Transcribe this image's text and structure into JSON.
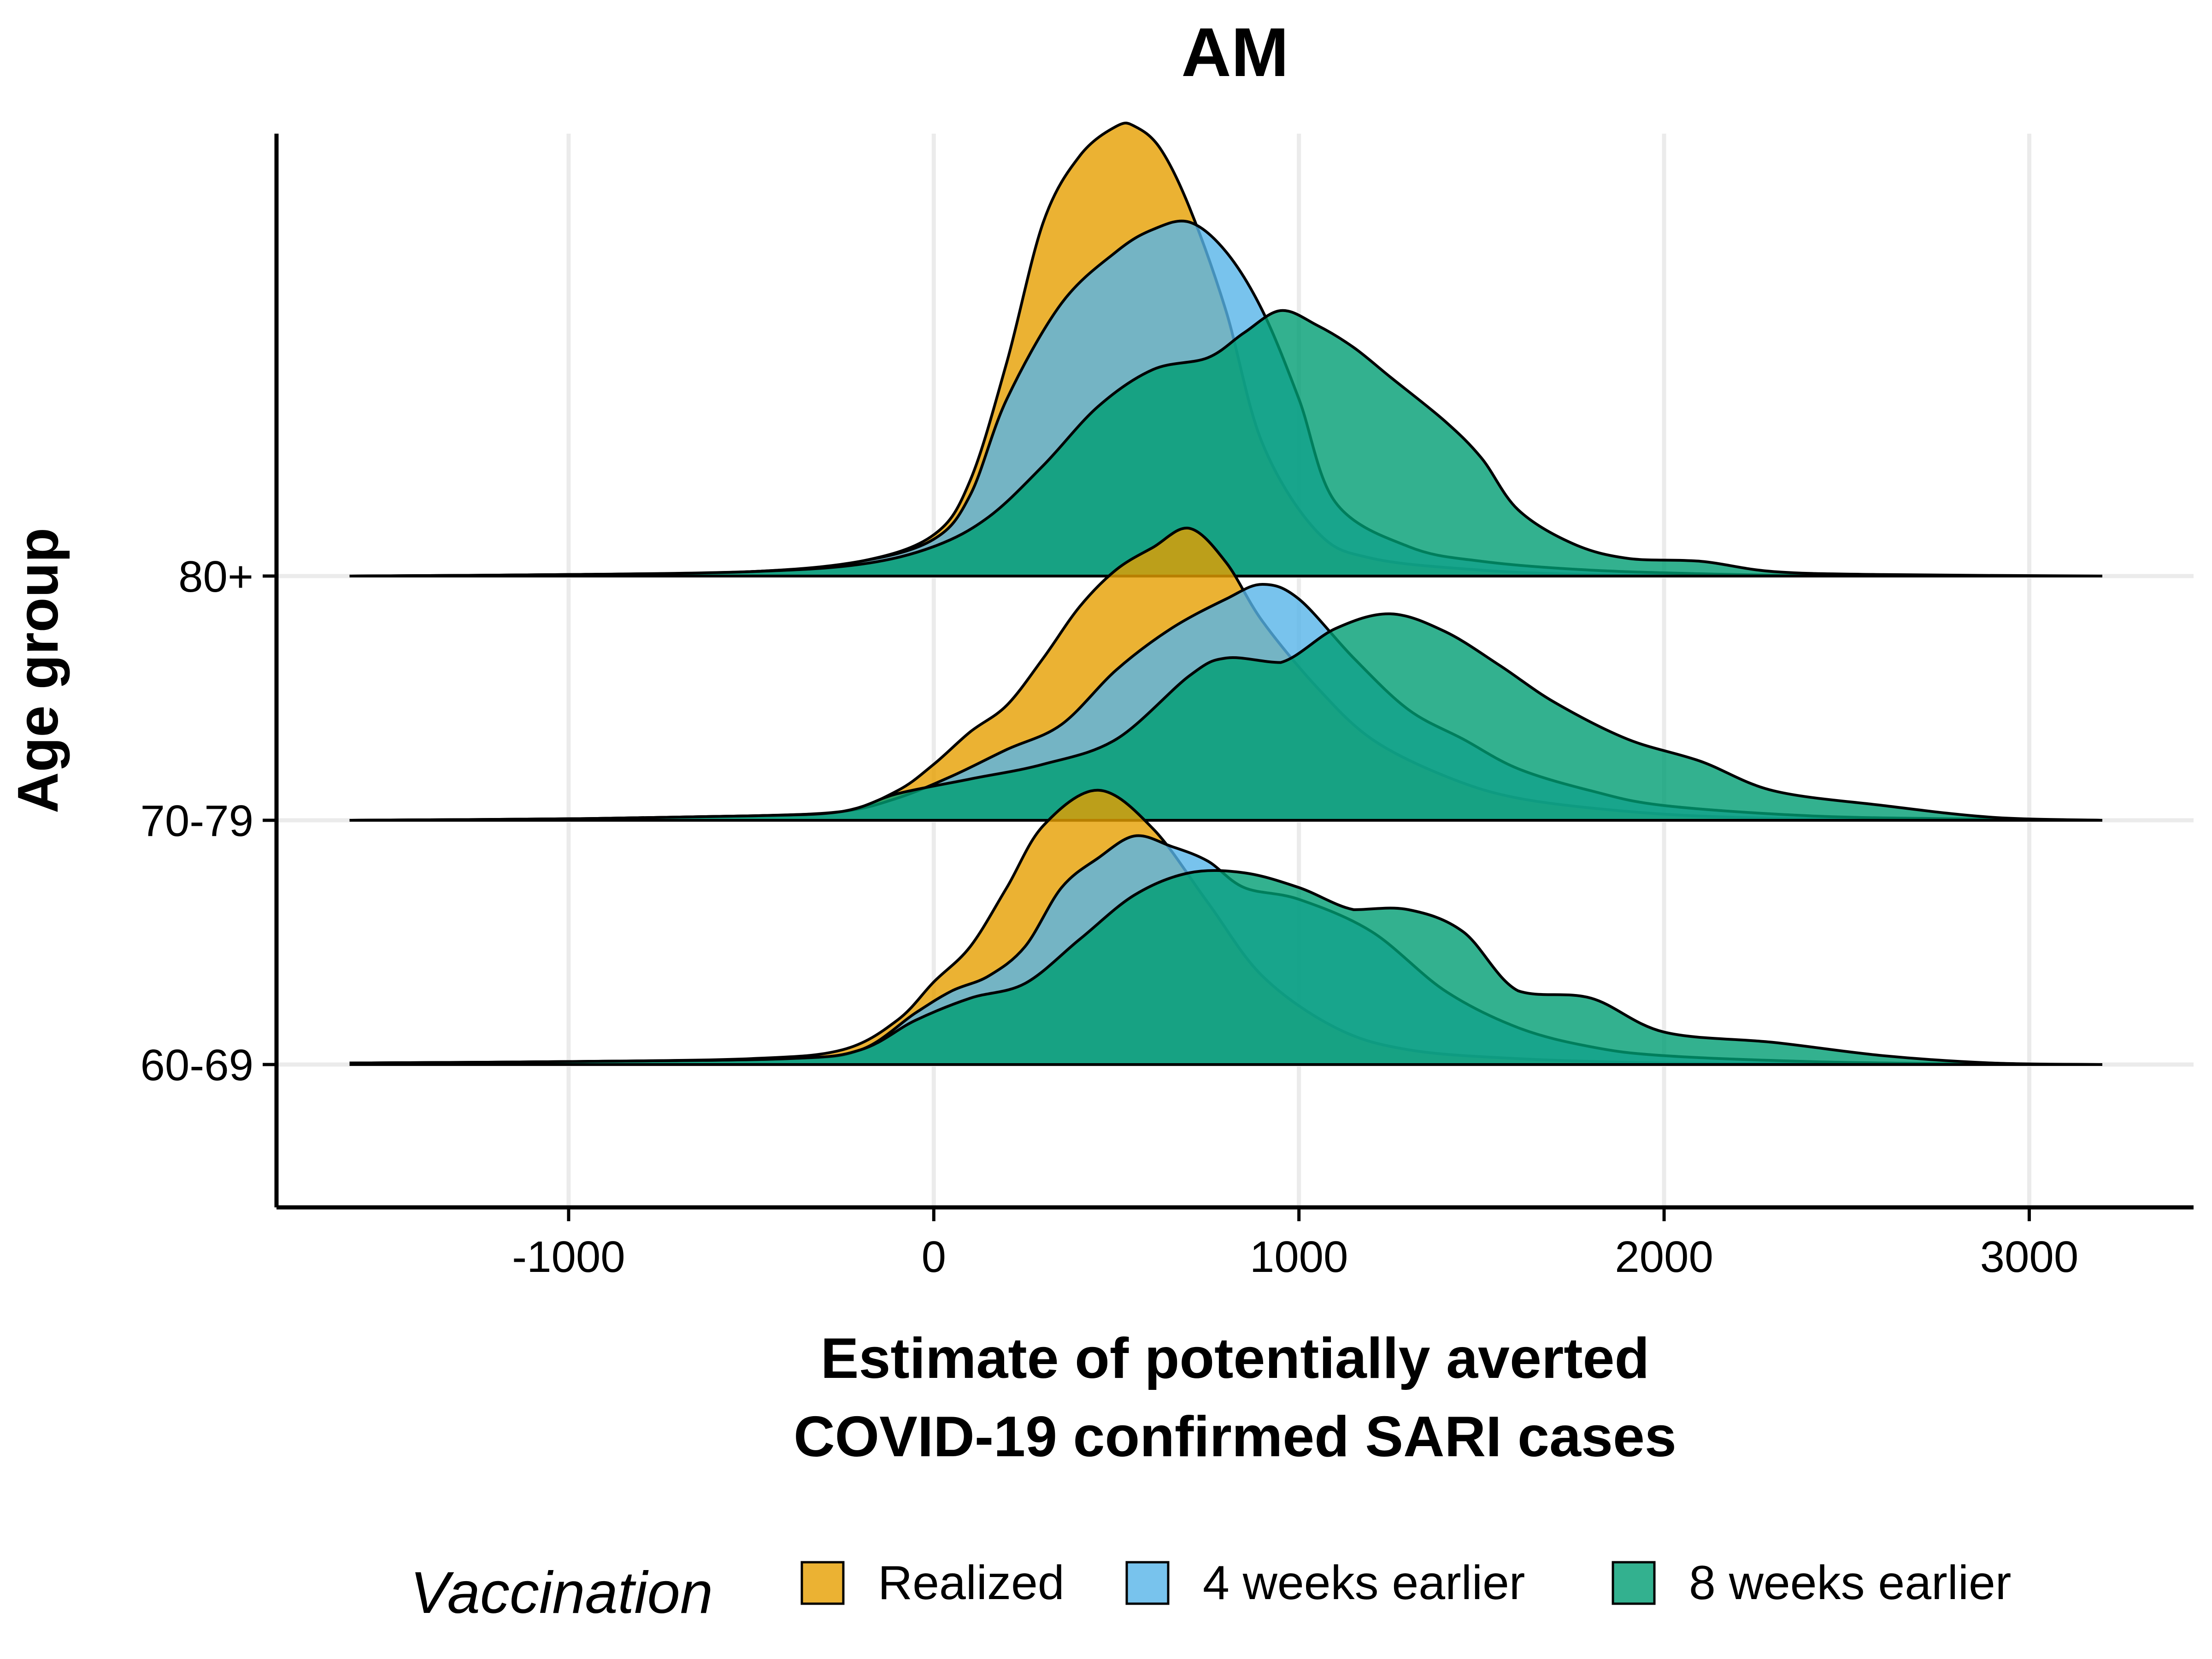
{
  "chart_data": {
    "type": "ridgeline",
    "title": "AM",
    "xlabel_lines": [
      "Estimate of potentially averted",
      "COVID-19 confirmed SARI cases"
    ],
    "ylabel": "Age group",
    "x_ticks": [
      -1000,
      0,
      1000,
      2000,
      3000
    ],
    "x_tick_labels": [
      "-1000",
      "0",
      "1000",
      "2000",
      "3000"
    ],
    "xlim": [
      -1800,
      3450
    ],
    "density_range": [
      -1600,
      3200
    ],
    "grid": true,
    "legend": {
      "position": "bottom",
      "title": "Vaccination",
      "items": [
        "Realized",
        "4 weeks earlier",
        "8 weeks earlier"
      ]
    },
    "groups": [
      {
        "label": "60-69",
        "series": [
          {
            "name": "Realized",
            "color": "#E69F00",
            "x": [
              -1600,
              -1000,
              -500,
              -250,
              -100,
              0,
              100,
              200,
              300,
              450,
              600,
              750,
              900,
              1100,
              1300,
              1600,
              2000,
              2400,
              2800,
              3200
            ],
            "y": [
              0.01,
              0.02,
              0.04,
              0.1,
              0.3,
              0.56,
              0.8,
              1.2,
              1.62,
              1.86,
              1.6,
              1.1,
              0.6,
              0.25,
              0.1,
              0.04,
              0.01,
              0.005,
              0.0,
              0.0
            ]
          },
          {
            "name": "4 weeks earlier",
            "color": "#56B4E9",
            "x": [
              -1600,
              -1000,
              -400,
              -200,
              -50,
              50,
              150,
              250,
              350,
              450,
              550,
              650,
              750,
              850,
              1000,
              1200,
              1400,
              1600,
              1800,
              2000,
              2400,
              2800,
              3200
            ],
            "y": [
              0.01,
              0.02,
              0.04,
              0.1,
              0.35,
              0.5,
              0.6,
              0.8,
              1.2,
              1.4,
              1.55,
              1.48,
              1.38,
              1.2,
              1.12,
              0.9,
              0.5,
              0.25,
              0.12,
              0.06,
              0.02,
              0.005,
              0.0
            ]
          },
          {
            "name": "8 weeks earlier",
            "color": "#009E73",
            "x": [
              -1600,
              -1000,
              -400,
              -200,
              -50,
              100,
              250,
              400,
              550,
              700,
              850,
              1000,
              1150,
              1300,
              1450,
              1600,
              1800,
              2000,
              2300,
              2600,
              2900,
              3200
            ],
            "y": [
              0.01,
              0.02,
              0.04,
              0.1,
              0.3,
              0.45,
              0.55,
              0.85,
              1.15,
              1.3,
              1.3,
              1.2,
              1.05,
              1.05,
              0.9,
              0.5,
              0.45,
              0.22,
              0.15,
              0.06,
              0.01,
              0.0
            ]
          }
        ]
      },
      {
        "label": "70-79",
        "series": [
          {
            "name": "Realized",
            "color": "#E69F00",
            "x": [
              -1600,
              -1000,
              -500,
              -250,
              -100,
              0,
              100,
              200,
              300,
              400,
              500,
              600,
              700,
              800,
              900,
              1050,
              1200,
              1400,
              1600,
              1900,
              2200,
              2600,
              3200
            ],
            "y": [
              0.0,
              0.01,
              0.03,
              0.06,
              0.2,
              0.38,
              0.6,
              0.78,
              1.1,
              1.45,
              1.7,
              1.85,
              1.98,
              1.75,
              1.35,
              0.9,
              0.55,
              0.3,
              0.15,
              0.06,
              0.02,
              0.005,
              0.0
            ]
          },
          {
            "name": "4 weeks earlier",
            "color": "#56B4E9",
            "x": [
              -1600,
              -1000,
              -500,
              -250,
              -100,
              50,
              200,
              350,
              500,
              650,
              800,
              900,
              1000,
              1150,
              1300,
              1450,
              1600,
              1800,
              2000,
              2400,
              2800,
              3200
            ],
            "y": [
              0.0,
              0.01,
              0.03,
              0.06,
              0.15,
              0.3,
              0.48,
              0.65,
              1.02,
              1.3,
              1.5,
              1.6,
              1.5,
              1.1,
              0.75,
              0.55,
              0.35,
              0.2,
              0.1,
              0.03,
              0.01,
              0.0
            ]
          },
          {
            "name": "8 weeks earlier",
            "color": "#009E73",
            "x": [
              -1600,
              -1000,
              -500,
              -250,
              -100,
              100,
              300,
              500,
              700,
              800,
              950,
              1100,
              1250,
              1400,
              1550,
              1700,
              1900,
              2100,
              2300,
              2600,
              2900,
              3200
            ],
            "y": [
              0.0,
              0.01,
              0.03,
              0.06,
              0.18,
              0.28,
              0.38,
              0.55,
              0.98,
              1.1,
              1.07,
              1.3,
              1.4,
              1.28,
              1.05,
              0.8,
              0.55,
              0.4,
              0.2,
              0.1,
              0.02,
              0.0
            ]
          }
        ]
      },
      {
        "label": "80+",
        "series": [
          {
            "name": "Realized",
            "color": "#E69F00",
            "x": [
              -1600,
              -1000,
              -500,
              -200,
              0,
              100,
              200,
              300,
              400,
              500,
              550,
              620,
              700,
              800,
              900,
              1050,
              1200,
              1500,
              1800,
              2200,
              2600,
              3200
            ],
            "y": [
              0.0,
              0.01,
              0.03,
              0.1,
              0.28,
              0.65,
              1.45,
              2.4,
              2.85,
              3.05,
              3.05,
              2.9,
              2.5,
              1.8,
              0.9,
              0.3,
              0.12,
              0.04,
              0.01,
              0.0,
              0.0,
              0.0
            ]
          },
          {
            "name": "4 weeks earlier",
            "color": "#56B4E9",
            "x": [
              -1600,
              -1000,
              -500,
              -200,
              0,
              100,
              200,
              350,
              500,
              600,
              700,
              800,
              900,
              1000,
              1100,
              1300,
              1500,
              1800,
              2200,
              2600,
              3200
            ],
            "y": [
              0.0,
              0.01,
              0.03,
              0.1,
              0.25,
              0.55,
              1.2,
              1.85,
              2.2,
              2.35,
              2.4,
              2.2,
              1.8,
              1.2,
              0.5,
              0.2,
              0.1,
              0.04,
              0.01,
              0.0,
              0.0
            ]
          },
          {
            "name": "8 weeks earlier",
            "color": "#009E73",
            "x": [
              -1600,
              -1000,
              -500,
              -200,
              0,
              150,
              300,
              450,
              600,
              750,
              850,
              950,
              1050,
              1150,
              1250,
              1400,
              1500,
              1600,
              1750,
              1900,
              2100,
              2300,
              2600,
              3200
            ],
            "y": [
              0.0,
              0.01,
              0.03,
              0.08,
              0.2,
              0.4,
              0.75,
              1.15,
              1.4,
              1.48,
              1.65,
              1.8,
              1.7,
              1.55,
              1.35,
              1.05,
              0.8,
              0.45,
              0.22,
              0.12,
              0.1,
              0.03,
              0.01,
              0.0
            ]
          }
        ]
      }
    ]
  }
}
